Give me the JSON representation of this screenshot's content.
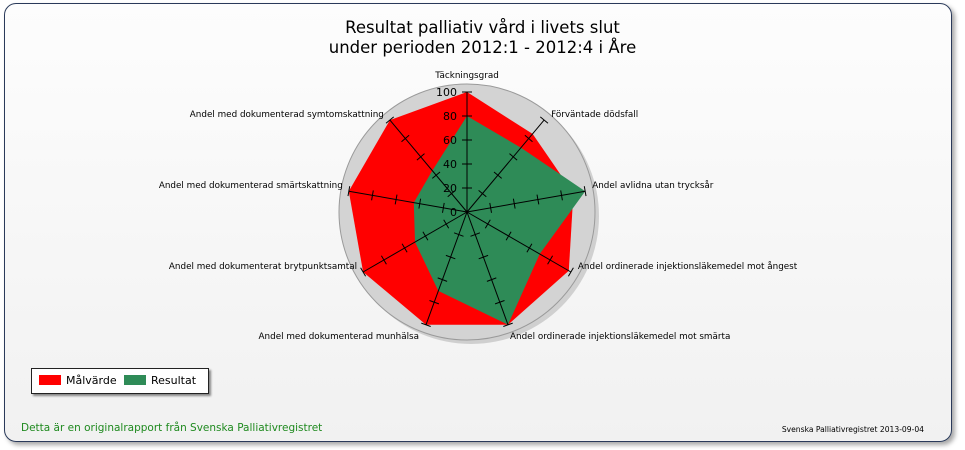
{
  "chart_data": {
    "type": "radar",
    "title": [
      "Resultat palliativ vård i livets slut",
      "under perioden 2012:1 - 2012:4 i Åre"
    ],
    "axes": [
      "Täckningsgrad",
      "Förväntade dödsfall",
      "Andel avlidna utan trycksår",
      "Andel ordinerade injektionsläkemedel mot ångest",
      "Andel ordinerade injektionsläkemedel mot smärta",
      "Andel med dokumenterad munhälsa",
      "Andel med dokumenterat brytpunktsamtal",
      "Andel med dokumenterad smärtskattning",
      "Andel med dokumenterad symtomskattning"
    ],
    "radial_ticks": [
      "0",
      "20",
      "40",
      "60",
      "80",
      "100"
    ],
    "rlim": [
      0,
      100
    ],
    "series": [
      {
        "name": "Målvärde",
        "color": "#ff0000",
        "values": [
          100,
          85,
          90,
          98,
          100,
          100,
          100,
          100,
          100
        ]
      },
      {
        "name": "Resultat",
        "color": "#2e8b57",
        "values": [
          80,
          70,
          100,
          70,
          100,
          70,
          50,
          45,
          45
        ]
      }
    ],
    "background_color": "#d3d3d3",
    "legend_position": "bottom-left"
  },
  "footer": {
    "source_note": "Detta är en originalrapport från Svenska Palliativregistret",
    "credit": "Svenska Palliativregistret 2013-09-04"
  }
}
